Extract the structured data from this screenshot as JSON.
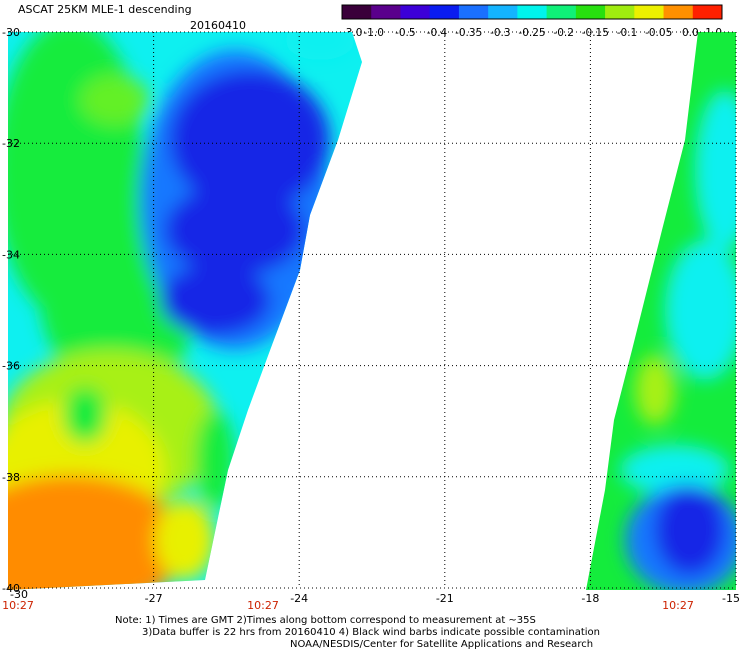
{
  "header": {
    "title": "ASCAT 25KM MLE-1 descending",
    "date": "20160410"
  },
  "colorbar": {
    "ticks": [
      "-3.0",
      "-1.0",
      "-0.5",
      "-0.4",
      "-0.35",
      "-0.3",
      "-0.25",
      "-0.2",
      "-0.15",
      "-0.1",
      "-0.05",
      "0.0",
      "1.0"
    ],
    "colors": [
      "#3a003a",
      "#5a008c",
      "#3c00d8",
      "#0a1cf0",
      "#1a70ff",
      "#14b4ff",
      "#00f4ec",
      "#10f078",
      "#28e010",
      "#a0ec10",
      "#ecf000",
      "#ff9000",
      "#ff2000"
    ]
  },
  "map": {
    "lon_ticks": [
      "-27",
      "-24",
      "-21",
      "-18",
      "-15"
    ],
    "lat_ticks": [
      "-30",
      "-32",
      "-34",
      "-36",
      "-38",
      "-40"
    ],
    "lon_range": [
      -30,
      -15
    ],
    "lat_range": [
      -40,
      -30
    ],
    "first_lon_label": "-30",
    "grid": "dotted",
    "pass_times": [
      "10:27",
      "10:27",
      "10:27"
    ],
    "palette": {
      "blue": "#1428e6",
      "lightblue": "#1478ff",
      "cyan": "#0ef0f0",
      "green": "#14ec3c",
      "lightgreen": "#64f028",
      "yellow": "#e8f000",
      "orange": "#ff8c00",
      "lime": "#a8f014"
    }
  },
  "notes": {
    "line1": "Note: 1) Times are GMT 2)Times along bottom correspond to measurement at ~35S",
    "line2": "3)Data buffer is 22 hrs from 20160410 4) Black wind barbs indicate possible contamination",
    "line3": "NOAA/NESDIS/Center for Satellite Applications and Research"
  }
}
